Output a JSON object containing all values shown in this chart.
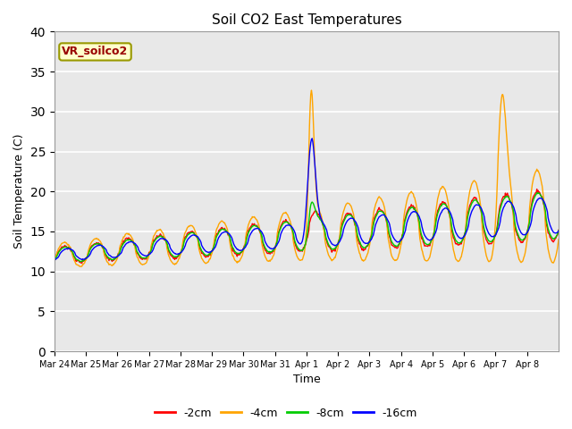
{
  "title": "Soil CO2 East Temperatures",
  "xlabel": "Time",
  "ylabel": "Soil Temperature (C)",
  "ylim": [
    0,
    40
  ],
  "bg_color": "#e8e8e8",
  "fig_color": "#ffffff",
  "line_colors": {
    "-2cm": "#ff0000",
    "-4cm": "#ffa500",
    "-8cm": "#00cc00",
    "-16cm": "#0000ff"
  },
  "legend_label": "VR_soilco2",
  "legend_text_color": "#990000",
  "legend_bg": "#ffffcc",
  "legend_border": "#999900",
  "xtick_labels": [
    "Mar 24",
    "Mar 25",
    "Mar 26",
    "Mar 27",
    "Mar 28",
    "Mar 29",
    "Mar 30",
    "Mar 31",
    "Apr 1",
    "Apr 2",
    "Apr 3",
    "Apr 4",
    "Apr 5",
    "Apr 6",
    "Apr 7",
    "Apr 8"
  ],
  "ytick_values": [
    0,
    5,
    10,
    15,
    20,
    25,
    30,
    35,
    40
  ]
}
